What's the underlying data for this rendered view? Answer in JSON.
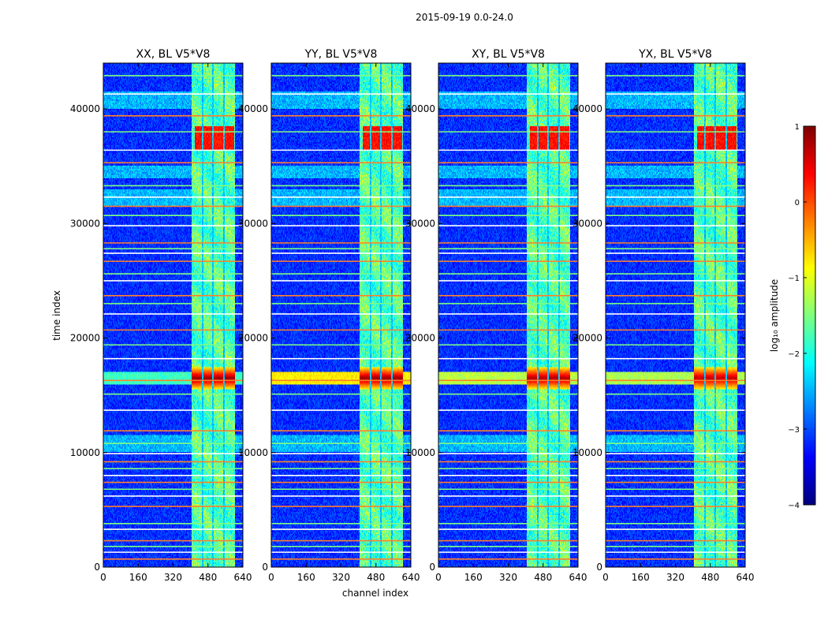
{
  "figure": {
    "suptitle": "2015-09-19 0.0-24.0",
    "shared_xlabel": "channel index",
    "shared_ylabel": "time index"
  },
  "chart_data": {
    "type": "heatmap",
    "description_of_values": "log10 amplitude of visibility per channel and time sample",
    "x": {
      "label": "channel index",
      "range": [
        0,
        640
      ],
      "ticks": [
        0,
        160,
        320,
        480,
        640
      ]
    },
    "y": {
      "label": "time index",
      "range": [
        0,
        44000
      ],
      "ticks": [
        0,
        10000,
        20000,
        30000,
        40000
      ]
    },
    "panels": [
      {
        "title": "XX, BL V5*V8",
        "polarization": "XX",
        "flare_strength": 1.0,
        "cross_band_strength": 0.35
      },
      {
        "title": "YY, BL V5*V8",
        "polarization": "YY",
        "flare_strength": 1.0,
        "cross_band_strength": 1.0
      },
      {
        "title": "XY, BL V5*V8",
        "polarization": "XY",
        "flare_strength": 0.95,
        "cross_band_strength": 0.75
      },
      {
        "title": "YX, BL V5*V8",
        "polarization": "YX",
        "flare_strength": 0.9,
        "cross_band_strength": 0.7
      }
    ],
    "structure": {
      "signal_channel_range": [
        405,
        605
      ],
      "signal_subband_gaps": [
        [
          452,
          458
        ],
        [
          500,
          508
        ],
        [
          548,
          556
        ]
      ],
      "flare_time_range": [
        15500,
        17500
      ],
      "flare_peak_time": 16500,
      "secondary_burst_time_range": [
        36500,
        38500
      ],
      "flagged_time_rows": [
        700,
        1300,
        1800,
        2300,
        3300,
        3800,
        5300,
        6200,
        6800,
        7400,
        8000,
        8600,
        9200,
        9900,
        10800,
        11900,
        13700,
        15100,
        16300,
        18200,
        19400,
        20700,
        22100,
        23000,
        23700,
        25000,
        25600,
        26700,
        27400,
        27800,
        28300,
        29800,
        30700,
        31500,
        32300,
        33300,
        35300,
        36400,
        38000,
        39400,
        41300,
        42900
      ],
      "high_noise_time_bands": [
        [
          31500,
          33000
        ],
        [
          34000,
          35000
        ],
        [
          10000,
          11500
        ],
        [
          40000,
          41500
        ]
      ]
    },
    "colorbar": {
      "label": "log₁₀ amplitude",
      "range": [
        -4,
        1
      ],
      "ticks": [
        -4,
        -3,
        -2,
        -1,
        0,
        1
      ],
      "tick_labels": [
        "−4",
        "−3",
        "−2",
        "−1",
        "0",
        "1"
      ],
      "colormap": "jet",
      "colormap_stops": [
        "#00007f",
        "#0000ff",
        "#007fff",
        "#00ffff",
        "#7fff7f",
        "#ffff00",
        "#ff7f00",
        "#ff0000",
        "#7f0000"
      ]
    },
    "flag_line_colors": [
      "#ff7f2a",
      "#ffffff",
      "#7fff7f"
    ]
  }
}
